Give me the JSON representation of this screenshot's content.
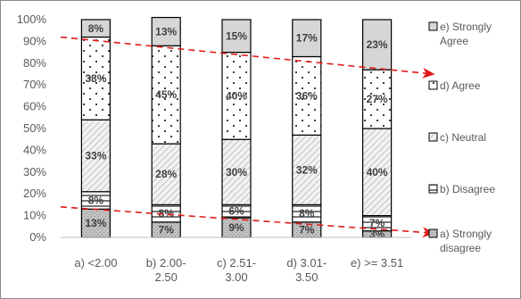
{
  "chart_data": {
    "type": "bar",
    "stacked": "percent",
    "categories": [
      [
        "a) <2.00"
      ],
      [
        "b) 2.00-",
        "2.50"
      ],
      [
        "c) 2.51-",
        "3.00"
      ],
      [
        "d) 3.01-",
        "3.50"
      ],
      [
        "e) >= 3.51"
      ]
    ],
    "y_ticks": [
      "0%",
      "10%",
      "20%",
      "30%",
      "40%",
      "50%",
      "60%",
      "70%",
      "80%",
      "90%",
      "100%"
    ],
    "ylim": [
      0,
      100
    ],
    "grid": false,
    "legend_position": "right",
    "series": [
      {
        "name": [
          "a) Strongly",
          "disagree"
        ],
        "key": "sd",
        "values": [
          13,
          7,
          9,
          7,
          3
        ],
        "labels": [
          "13%",
          "7%",
          "9%",
          "7%",
          "3%"
        ]
      },
      {
        "name": [
          "b) Disagree"
        ],
        "key": "d",
        "values": [
          8,
          8,
          6,
          8,
          7
        ],
        "labels": [
          "8%",
          "8%",
          "6%",
          "8%",
          "7%"
        ]
      },
      {
        "name": [
          "c) Neutral"
        ],
        "key": "n",
        "values": [
          33,
          28,
          30,
          32,
          40
        ],
        "labels": [
          "33%",
          "28%",
          "30%",
          "32%",
          "40%"
        ]
      },
      {
        "name": [
          "d) Agree"
        ],
        "key": "a",
        "values": [
          38,
          45,
          40,
          36,
          27
        ],
        "labels": [
          "38%",
          "45%",
          "40%",
          "36%",
          "27%"
        ]
      },
      {
        "name": [
          "e) Strongly",
          "Agree"
        ],
        "key": "sa",
        "values": [
          8,
          13,
          15,
          17,
          23
        ],
        "labels": [
          "8%",
          "13%",
          "15%",
          "17%",
          "23%"
        ]
      }
    ],
    "annotations": [
      {
        "type": "trend-arrow",
        "style": "dashed",
        "color": "#e01b1b",
        "from": [
          -0.5,
          92
        ],
        "to": [
          4.8,
          75
        ]
      },
      {
        "type": "trend-arrow",
        "style": "dashed",
        "color": "#e01b1b",
        "from": [
          -0.5,
          14
        ],
        "to": [
          4.8,
          2
        ]
      }
    ]
  }
}
